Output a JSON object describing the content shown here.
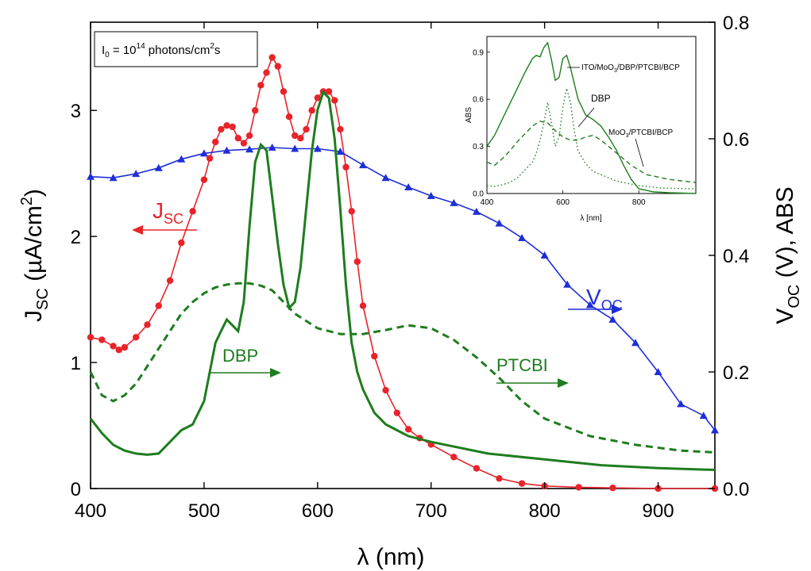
{
  "chart_data": {
    "type": "line",
    "xlabel": "λ (nm)",
    "xlim": [
      400,
      950
    ],
    "x_ticks": [
      "400",
      "500",
      "600",
      "700",
      "800",
      "900"
    ],
    "ylabel_left": {
      "main": "J",
      "sub": "SC",
      "rest": " (µA/cm",
      "sup": "2",
      "end": ")"
    },
    "ylim_left": [
      0,
      3.7
    ],
    "y_ticks_left": [
      "0",
      "1",
      "2",
      "3"
    ],
    "ylabel_right": {
      "main": "V",
      "sub": "OC",
      "rest": " (V), ABS"
    },
    "ylim_right": [
      0,
      0.8
    ],
    "y_ticks_right": [
      "0.0",
      "0.2",
      "0.4",
      "0.6",
      "0.8"
    ],
    "legend_box": {
      "pre": "I",
      "sub": "0",
      "mid": " = 10",
      "sup1": "14",
      "post": " photons/cm",
      "sup2": "2",
      "end": "s"
    },
    "labels": {
      "jsc": {
        "main": "J",
        "sub": "SC"
      },
      "voc": {
        "main": "V",
        "sub": "OC"
      },
      "dbp": "DBP",
      "ptcbi": "PTCBI"
    },
    "colors": {
      "jsc": "#e8232a",
      "voc": "#1f2fd6",
      "abs": "#1e7d1e"
    },
    "series": [
      {
        "name": "Jsc",
        "axis": "left",
        "color": "#e8232a",
        "marker": "circle",
        "x": [
          400,
          410,
          420,
          425,
          430,
          440,
          450,
          460,
          470,
          480,
          490,
          500,
          505,
          510,
          515,
          520,
          525,
          530,
          535,
          540,
          545,
          550,
          555,
          560,
          565,
          570,
          575,
          580,
          585,
          590,
          595,
          600,
          605,
          610,
          615,
          620,
          625,
          630,
          635,
          640,
          650,
          660,
          670,
          680,
          690,
          700,
          720,
          740,
          760,
          780,
          800,
          830,
          860,
          900,
          950
        ],
        "y": [
          1.2,
          1.18,
          1.13,
          1.1,
          1.12,
          1.2,
          1.3,
          1.45,
          1.65,
          1.95,
          2.2,
          2.45,
          2.62,
          2.75,
          2.85,
          2.88,
          2.87,
          2.78,
          2.74,
          2.8,
          3.0,
          3.2,
          3.3,
          3.42,
          3.35,
          3.15,
          2.95,
          2.8,
          2.78,
          2.85,
          3.0,
          3.1,
          3.15,
          3.15,
          3.08,
          2.85,
          2.55,
          2.2,
          1.8,
          1.45,
          1.05,
          0.78,
          0.6,
          0.47,
          0.4,
          0.35,
          0.25,
          0.16,
          0.08,
          0.04,
          0.02,
          0.01,
          0.005,
          0.0,
          0.0
        ]
      },
      {
        "name": "Voc",
        "axis": "right",
        "color": "#1f2fd6",
        "marker": "triangle",
        "x": [
          400,
          420,
          440,
          460,
          480,
          500,
          520,
          540,
          560,
          580,
          600,
          620,
          640,
          660,
          680,
          700,
          720,
          740,
          760,
          780,
          800,
          820,
          840,
          860,
          880,
          900,
          920,
          940,
          950
        ],
        "y": [
          0.535,
          0.533,
          0.54,
          0.55,
          0.565,
          0.575,
          0.58,
          0.582,
          0.585,
          0.583,
          0.583,
          0.578,
          0.555,
          0.533,
          0.517,
          0.502,
          0.49,
          0.475,
          0.455,
          0.43,
          0.4,
          0.35,
          0.315,
          0.29,
          0.25,
          0.2,
          0.145,
          0.125,
          0.1
        ]
      },
      {
        "name": "DBP",
        "axis": "right",
        "color": "#1e7d1e",
        "dash": "solid",
        "x": [
          400,
          410,
          420,
          430,
          440,
          450,
          460,
          470,
          480,
          490,
          500,
          505,
          510,
          515,
          520,
          525,
          530,
          535,
          540,
          545,
          550,
          555,
          560,
          565,
          570,
          575,
          580,
          585,
          590,
          595,
          600,
          605,
          610,
          615,
          620,
          625,
          630,
          635,
          640,
          650,
          660,
          680,
          700,
          750,
          800,
          850,
          900,
          950
        ],
        "y": [
          0.12,
          0.095,
          0.075,
          0.065,
          0.06,
          0.058,
          0.06,
          0.08,
          0.1,
          0.11,
          0.15,
          0.2,
          0.25,
          0.27,
          0.29,
          0.28,
          0.27,
          0.32,
          0.45,
          0.56,
          0.59,
          0.58,
          0.5,
          0.42,
          0.35,
          0.31,
          0.32,
          0.38,
          0.48,
          0.58,
          0.65,
          0.68,
          0.67,
          0.6,
          0.48,
          0.35,
          0.25,
          0.2,
          0.17,
          0.13,
          0.11,
          0.09,
          0.08,
          0.06,
          0.05,
          0.04,
          0.035,
          0.032
        ]
      },
      {
        "name": "PTCBI",
        "axis": "right",
        "color": "#1e7d1e",
        "dash": "dashed",
        "x": [
          400,
          410,
          420,
          430,
          440,
          450,
          460,
          470,
          480,
          490,
          500,
          510,
          520,
          530,
          540,
          550,
          560,
          570,
          580,
          600,
          620,
          640,
          660,
          680,
          700,
          720,
          740,
          760,
          780,
          800,
          840,
          880,
          920,
          950
        ],
        "y": [
          0.2,
          0.16,
          0.15,
          0.16,
          0.18,
          0.21,
          0.24,
          0.27,
          0.3,
          0.32,
          0.335,
          0.345,
          0.35,
          0.352,
          0.352,
          0.348,
          0.34,
          0.32,
          0.3,
          0.275,
          0.265,
          0.265,
          0.272,
          0.28,
          0.275,
          0.255,
          0.225,
          0.19,
          0.15,
          0.12,
          0.09,
          0.075,
          0.065,
          0.062
        ]
      }
    ],
    "inset": {
      "xlabel": "λ [nm]",
      "ylabel": "ABS",
      "xlim": [
        400,
        950
      ],
      "ylim": [
        0,
        1.0
      ],
      "x_ticks": [
        "400",
        "600",
        "800"
      ],
      "y_ticks": [
        "0.0",
        "0.3",
        "0.6",
        "0.9"
      ],
      "labels": {
        "ito": {
          "pre": "ITO/MoO",
          "sub": "3",
          "post": "/DBP/PTCBI/BCP"
        },
        "dbp": "DBP",
        "moo": {
          "pre": "MoO",
          "sub": "3",
          "post": "/PTCBI/BCP"
        }
      },
      "series": [
        {
          "name": "ITO/MoO3/DBP/PTCBI/BCP",
          "dash": "solid",
          "x": [
            400,
            420,
            440,
            460,
            480,
            500,
            520,
            530,
            540,
            550,
            560,
            570,
            580,
            590,
            600,
            610,
            620,
            640,
            660,
            680,
            700,
            720,
            740,
            760,
            780,
            800,
            840,
            880,
            950
          ],
          "y": [
            0.3,
            0.37,
            0.47,
            0.57,
            0.67,
            0.77,
            0.86,
            0.88,
            0.87,
            0.93,
            0.96,
            0.85,
            0.72,
            0.74,
            0.86,
            0.88,
            0.8,
            0.6,
            0.5,
            0.47,
            0.43,
            0.36,
            0.28,
            0.18,
            0.09,
            0.03,
            0.01,
            0.005,
            0.0
          ]
        },
        {
          "name": "DBP",
          "dash": "dotted",
          "x": [
            400,
            420,
            440,
            460,
            480,
            500,
            520,
            530,
            540,
            550,
            560,
            570,
            580,
            590,
            600,
            610,
            620,
            630,
            640,
            660,
            680,
            700,
            740,
            800,
            860,
            950
          ],
          "y": [
            0.05,
            0.045,
            0.055,
            0.07,
            0.1,
            0.15,
            0.2,
            0.26,
            0.34,
            0.45,
            0.58,
            0.45,
            0.3,
            0.36,
            0.55,
            0.67,
            0.58,
            0.4,
            0.27,
            0.19,
            0.14,
            0.12,
            0.08,
            0.05,
            0.035,
            0.03
          ]
        },
        {
          "name": "MoO3/PTCBI/BCP",
          "dash": "dashed",
          "x": [
            400,
            420,
            440,
            460,
            480,
            500,
            520,
            540,
            560,
            580,
            600,
            620,
            640,
            660,
            680,
            700,
            740,
            780,
            820,
            880,
            950
          ],
          "y": [
            0.2,
            0.18,
            0.22,
            0.27,
            0.33,
            0.38,
            0.43,
            0.46,
            0.45,
            0.4,
            0.36,
            0.34,
            0.34,
            0.36,
            0.37,
            0.34,
            0.26,
            0.18,
            0.12,
            0.09,
            0.07
          ]
        }
      ]
    }
  }
}
